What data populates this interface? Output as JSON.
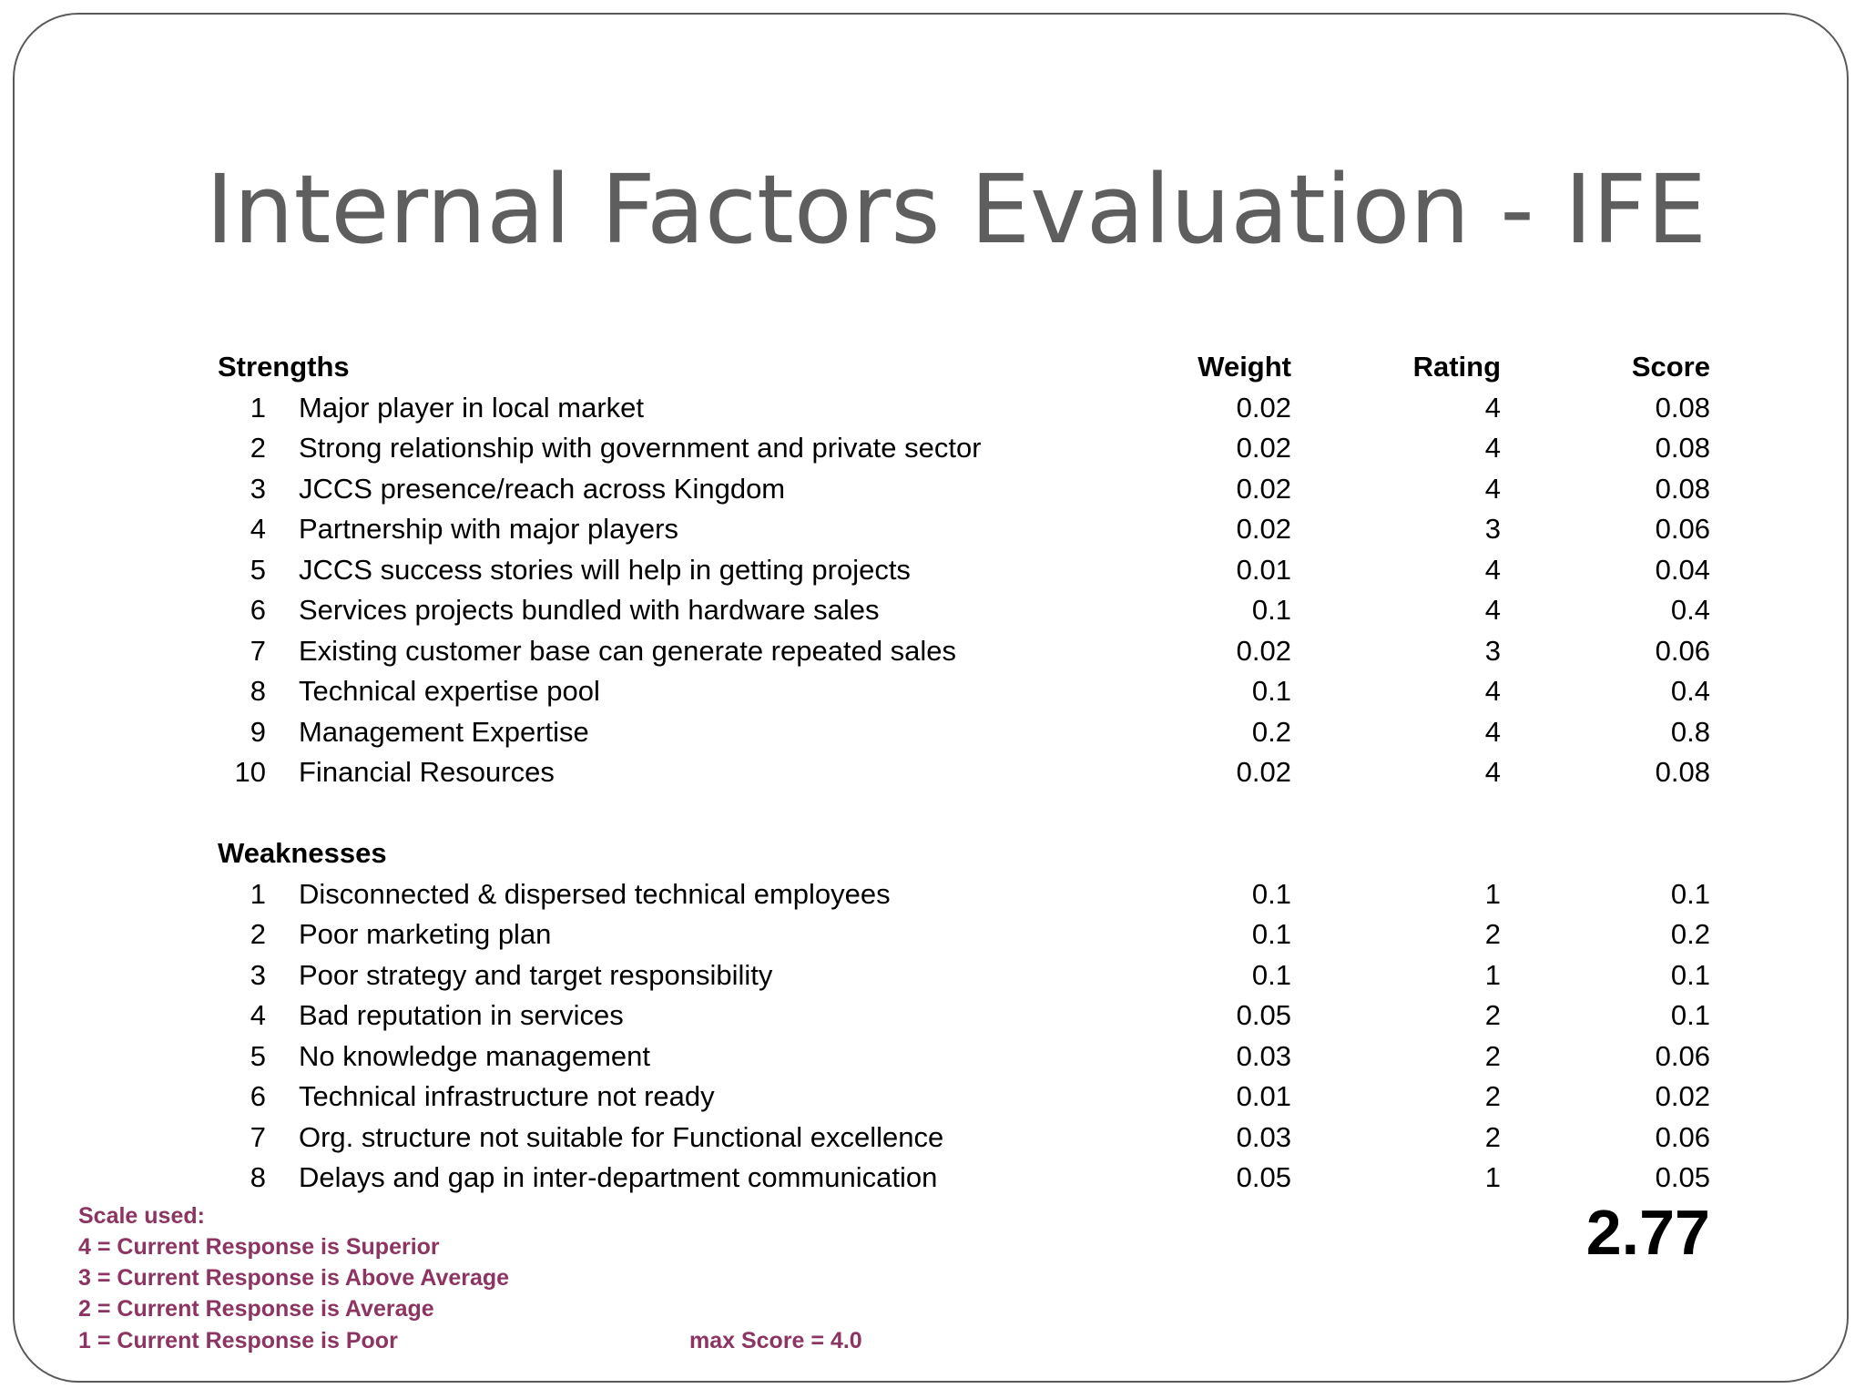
{
  "title": "Internal Factors Evaluation - IFE",
  "columns": {
    "weight": "Weight",
    "rating": "Rating",
    "score": "Score"
  },
  "strengths": {
    "heading": "Strengths",
    "rows": [
      {
        "num": "1",
        "label": "Major player in local market",
        "weight": "0.02",
        "rating": "4",
        "score": "0.08"
      },
      {
        "num": "2",
        "label": "Strong relationship with government and private sector",
        "weight": "0.02",
        "rating": "4",
        "score": "0.08"
      },
      {
        "num": "3",
        "label": "JCCS presence/reach across Kingdom",
        "weight": "0.02",
        "rating": "4",
        "score": "0.08"
      },
      {
        "num": "4",
        "label": "Partnership with major players",
        "weight": "0.02",
        "rating": "3",
        "score": "0.06"
      },
      {
        "num": "5",
        "label": "JCCS success stories will help in getting projects",
        "weight": "0.01",
        "rating": "4",
        "score": "0.04"
      },
      {
        "num": "6",
        "label": "Services projects bundled with hardware sales",
        "weight": "0.1",
        "rating": "4",
        "score": "0.4"
      },
      {
        "num": "7",
        "label": "Existing customer base can generate repeated sales",
        "weight": "0.02",
        "rating": "3",
        "score": "0.06"
      },
      {
        "num": "8",
        "label": "Technical expertise pool",
        "weight": "0.1",
        "rating": "4",
        "score": "0.4"
      },
      {
        "num": "9",
        "label": "Management Expertise",
        "weight": "0.2",
        "rating": "4",
        "score": "0.8"
      },
      {
        "num": "10",
        "label": "Financial Resources",
        "weight": "0.02",
        "rating": "4",
        "score": "0.08"
      }
    ]
  },
  "weaknesses": {
    "heading": "Weaknesses",
    "rows": [
      {
        "num": "1",
        "label": "Disconnected & dispersed technical employees",
        "weight": "0.1",
        "rating": "1",
        "score": "0.1"
      },
      {
        "num": "2",
        "label": "Poor marketing plan",
        "weight": "0.1",
        "rating": "2",
        "score": "0.2"
      },
      {
        "num": "3",
        "label": "Poor strategy and target responsibility",
        "weight": "0.1",
        "rating": "1",
        "score": "0.1"
      },
      {
        "num": "4",
        "label": "Bad reputation in services",
        "weight": "0.05",
        "rating": "2",
        "score": "0.1"
      },
      {
        "num": "5",
        "label": "No knowledge management",
        "weight": "0.03",
        "rating": "2",
        "score": "0.06"
      },
      {
        "num": "6",
        "label": "Technical infrastructure not ready",
        "weight": "0.01",
        "rating": "2",
        "score": "0.02"
      },
      {
        "num": "7",
        "label": "Org. structure not suitable for Functional excellence",
        "weight": "0.03",
        "rating": "2",
        "score": "0.06"
      },
      {
        "num": "8",
        "label": "Delays and gap in inter-department communication",
        "weight": "0.05",
        "rating": "1",
        "score": "0.05"
      }
    ]
  },
  "total_score": "2.77",
  "scale": {
    "heading": "Scale used:",
    "items": [
      "4 = Current Response is Superior",
      "3 = Current Response is Above Average",
      "2 = Current Response is Average",
      "1 = Current Response is Poor"
    ]
  },
  "max_score": "max Score = 4.0",
  "colors": {
    "title": "#5e5e5e",
    "text": "#000000",
    "scale_text": "#8c3462",
    "border": "#5a5a5a"
  }
}
